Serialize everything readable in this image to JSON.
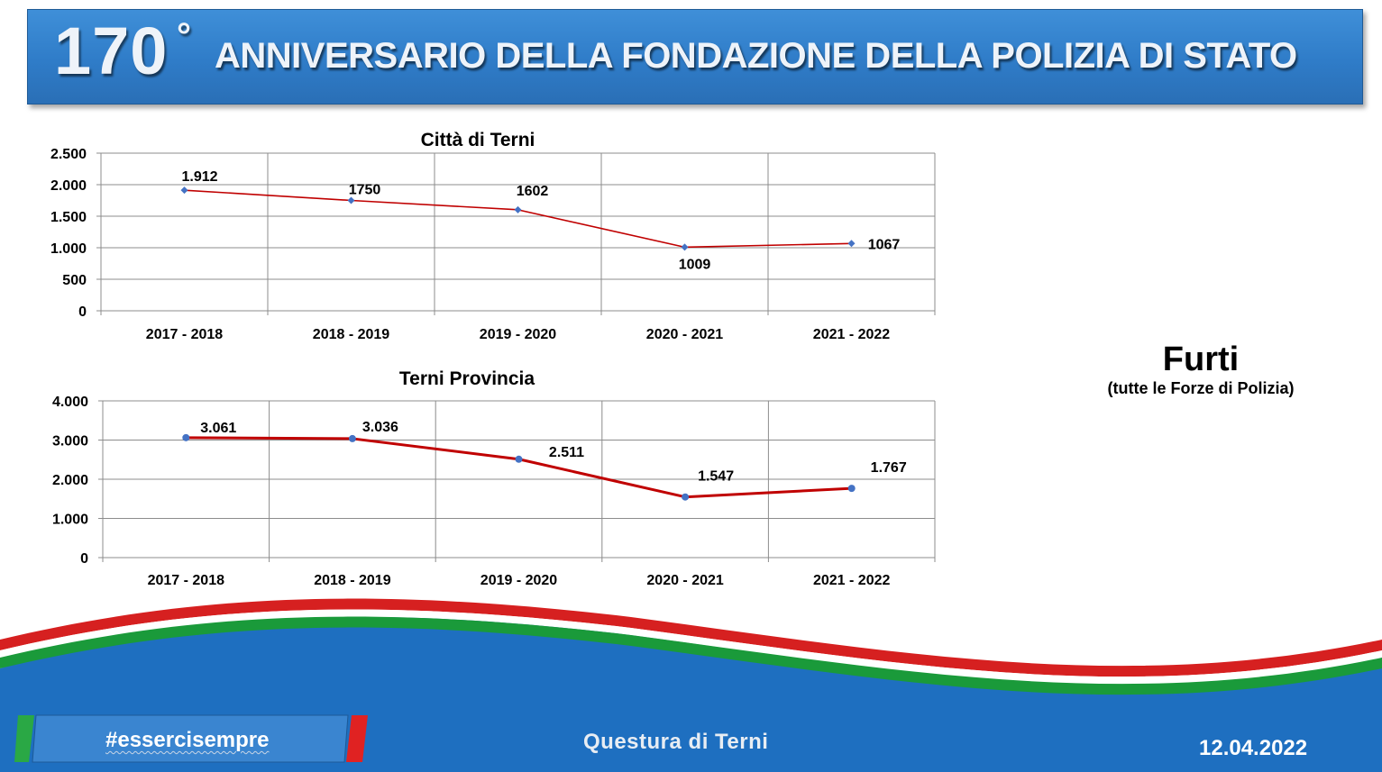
{
  "banner": {
    "number": "170",
    "degree": "°",
    "title": "ANNIVERSARIO DELLA FONDAZIONE DELLA POLIZIA DI STATO"
  },
  "side": {
    "title": "Furti",
    "subtitle": "(tutte le Forze di Polizia)"
  },
  "footer": {
    "hashtag": "#essercisempre",
    "center": "Questura di Terni",
    "date": "12.04.2022"
  },
  "colors": {
    "line": "#c00000",
    "marker": "#4472c4",
    "banner": "#2f7cc8",
    "footer_blue": "#1e6fc0",
    "green": "#1a9a3a",
    "red": "#d62020"
  },
  "chart_data": [
    {
      "type": "line",
      "title": "Città di Terni",
      "categories": [
        "2017 - 2018",
        "2018 - 2019",
        "2019 - 2020",
        "2020 - 2021",
        "2021 - 2022"
      ],
      "values": [
        1912,
        1750,
        1602,
        1009,
        1067
      ],
      "labels": [
        "1.912",
        "1750",
        "1602",
        "1009",
        "1067"
      ],
      "ylim": [
        0,
        2500
      ],
      "yticks": [
        0,
        500,
        1000,
        1500,
        2000,
        2500
      ],
      "ytick_labels": [
        "0",
        "500",
        "1.000",
        "1.500",
        "2.000",
        "2.500"
      ],
      "grid": true,
      "marker": "diamond"
    },
    {
      "type": "line",
      "title": "Terni Provincia",
      "categories": [
        "2017 - 2018",
        "2018 - 2019",
        "2019 - 2020",
        "2020 - 2021",
        "2021 - 2022"
      ],
      "values": [
        3061,
        3036,
        2511,
        1547,
        1767
      ],
      "labels": [
        "3.061",
        "3.036",
        "2.511",
        "1.547",
        "1.767"
      ],
      "ylim": [
        0,
        4000
      ],
      "yticks": [
        0,
        1000,
        2000,
        3000,
        4000
      ],
      "ytick_labels": [
        "0",
        "1.000",
        "2.000",
        "3.000",
        "4.000"
      ],
      "grid": true,
      "marker": "circle"
    }
  ]
}
